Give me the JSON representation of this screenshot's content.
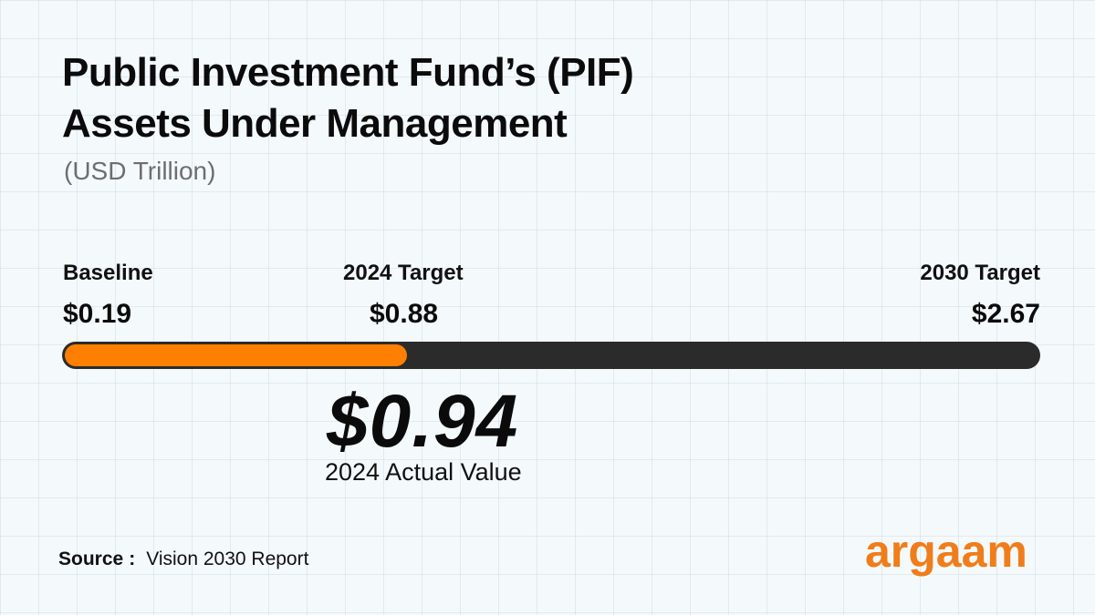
{
  "header": {
    "title_line1": "Public Investment Fund’s (PIF)",
    "title_line2": "Assets Under Management",
    "subtitle": "(USD Trillion)"
  },
  "chart_data": {
    "type": "bar",
    "title": "Public Investment Fund’s (PIF) Assets Under Management",
    "subtitle": "(USD Trillion)",
    "scale_max": 2.67,
    "markers": [
      {
        "label": "Baseline",
        "value_label": "$0.19",
        "value": 0.19
      },
      {
        "label": "2024 Target",
        "value_label": "$0.88",
        "value": 0.88
      },
      {
        "label": "2030 Target",
        "value_label": "$2.67",
        "value": 2.67
      }
    ],
    "actual": {
      "value": 0.94,
      "value_label": "$0.94",
      "label": "2024 Actual Value"
    },
    "colors": {
      "fill": "#ff8000",
      "track": "#2b2b2b"
    }
  },
  "source": {
    "label": "Source",
    "separator": ":",
    "text": "Vision 2030 Report"
  },
  "brand": {
    "logo_text": "argaam",
    "color": "#f07d1a"
  }
}
